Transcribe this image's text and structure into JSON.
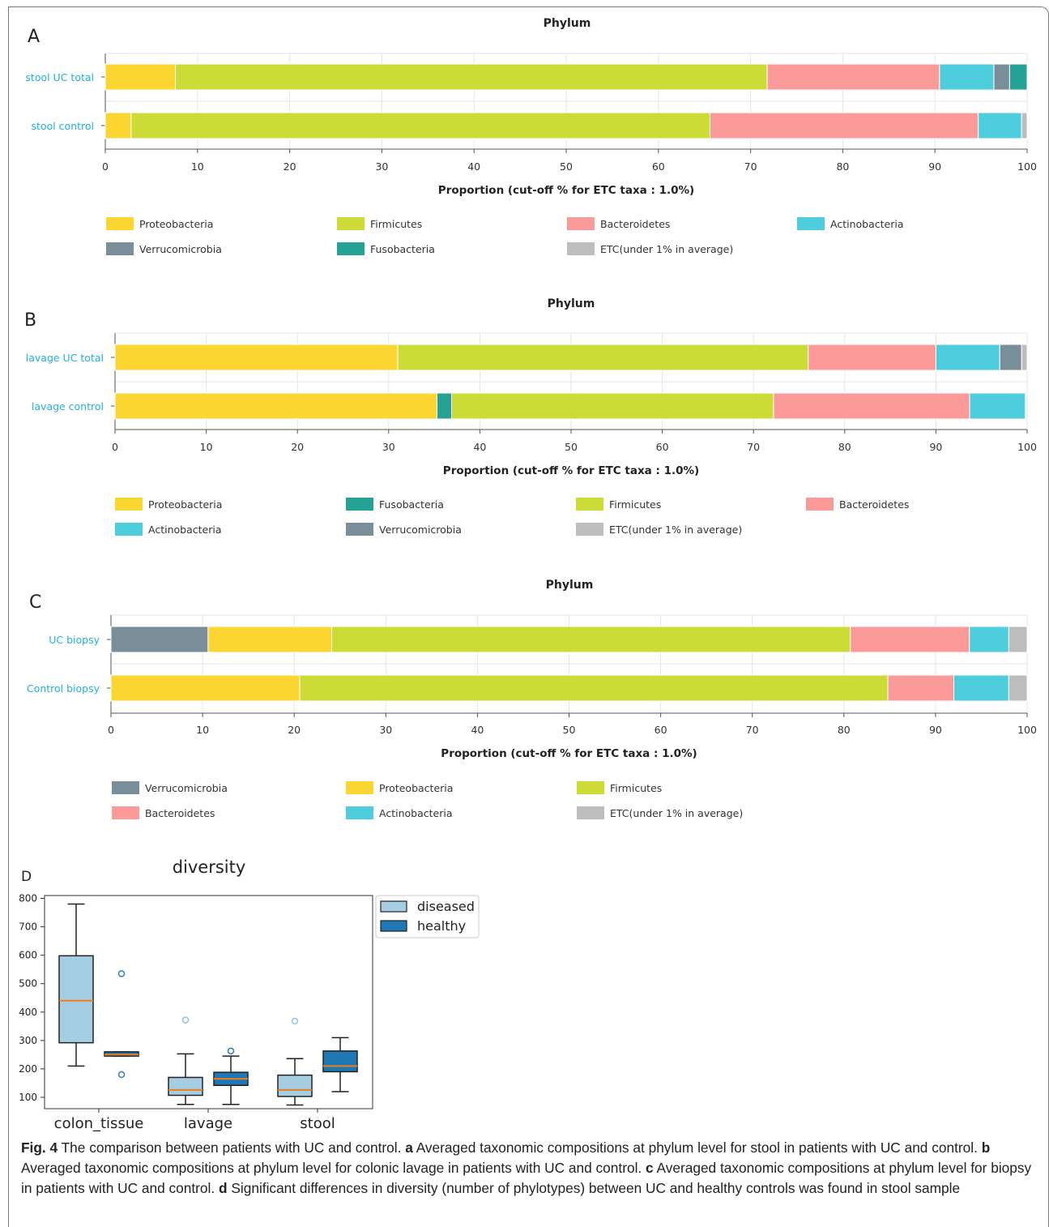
{
  "colors": {
    "Proteobacteria": "#fcd630",
    "Firmicutes": "#cddb37",
    "Bacteroidetes": "#fc9a9a",
    "Actinobacteria": "#4ecedc",
    "Verrucomicrobia": "#798e98",
    "Fusobacteria": "#25a195",
    "ETC(under 1% in average)": "#bdbdbd"
  },
  "chart_data": [
    {
      "type": "bar",
      "orientation": "horizontal",
      "stacked": true,
      "panel": "A",
      "title": "Phylum",
      "xlabel": "Proportion (cut-off % for ETC taxa : 1.0%)",
      "xlim": [
        0,
        100
      ],
      "xticks": [
        "0",
        "10",
        "20",
        "30",
        "40",
        "50",
        "60",
        "70",
        "80",
        "90",
        "100"
      ],
      "categories": [
        "stool UC total",
        "stool control"
      ],
      "legend": [
        "Proteobacteria",
        "Firmicutes",
        "Bacteroidetes",
        "Actinobacteria",
        "Verrucomicrobia",
        "Fusobacteria",
        "ETC(under 1% in average)"
      ],
      "legend_position": "bottom",
      "bars": [
        {
          "category": "stool UC total",
          "segments": [
            {
              "name": "Proteobacteria",
              "value": 7.6
            },
            {
              "name": "Firmicutes",
              "value": 64.2
            },
            {
              "name": "Bacteroidetes",
              "value": 18.7
            },
            {
              "name": "Actinobacteria",
              "value": 5.9
            },
            {
              "name": "Verrucomicrobia",
              "value": 1.7
            },
            {
              "name": "Fusobacteria",
              "value": 1.9
            }
          ]
        },
        {
          "category": "stool control",
          "segments": [
            {
              "name": "Proteobacteria",
              "value": 2.8
            },
            {
              "name": "Firmicutes",
              "value": 62.8
            },
            {
              "name": "Bacteroidetes",
              "value": 29.1
            },
            {
              "name": "Actinobacteria",
              "value": 4.7
            },
            {
              "name": "ETC(under 1% in average)",
              "value": 0.6
            }
          ]
        }
      ]
    },
    {
      "type": "bar",
      "orientation": "horizontal",
      "stacked": true,
      "panel": "B",
      "title": "Phylum",
      "xlabel": "Proportion (cut-off % for ETC taxa : 1.0%)",
      "xlim": [
        0,
        100
      ],
      "xticks": [
        "0",
        "10",
        "20",
        "30",
        "40",
        "50",
        "60",
        "70",
        "80",
        "90",
        "100"
      ],
      "categories": [
        "lavage UC total",
        "lavage control"
      ],
      "legend": [
        "Proteobacteria",
        "Fusobacteria",
        "Firmicutes",
        "Bacteroidetes",
        "Actinobacteria",
        "Verrucomicrobia",
        "ETC(under 1% in average)"
      ],
      "legend_position": "bottom",
      "bars": [
        {
          "category": "lavage UC total",
          "segments": [
            {
              "name": "Proteobacteria",
              "value": 31.0
            },
            {
              "name": "Firmicutes",
              "value": 45.0
            },
            {
              "name": "Bacteroidetes",
              "value": 14.0
            },
            {
              "name": "Actinobacteria",
              "value": 7.0
            },
            {
              "name": "Verrucomicrobia",
              "value": 2.4
            },
            {
              "name": "ETC(under 1% in average)",
              "value": 0.6
            }
          ]
        },
        {
          "category": "lavage control",
          "segments": [
            {
              "name": "Proteobacteria",
              "value": 35.3
            },
            {
              "name": "Fusobacteria",
              "value": 1.6
            },
            {
              "name": "Firmicutes",
              "value": 35.3
            },
            {
              "name": "Bacteroidetes",
              "value": 21.5
            },
            {
              "name": "Actinobacteria",
              "value": 6.1
            }
          ]
        }
      ]
    },
    {
      "type": "bar",
      "orientation": "horizontal",
      "stacked": true,
      "panel": "C",
      "title": "Phylum",
      "xlabel": "Proportion (cut-off % for ETC taxa : 1.0%)",
      "xlim": [
        0,
        100
      ],
      "xticks": [
        "0",
        "10",
        "20",
        "30",
        "40",
        "50",
        "60",
        "70",
        "80",
        "90",
        "100"
      ],
      "categories": [
        "UC biopsy",
        "Control biopsy"
      ],
      "legend": [
        "Verrucomicrobia",
        "Proteobacteria",
        "Firmicutes",
        "Bacteroidetes",
        "Actinobacteria",
        "ETC(under 1% in average)"
      ],
      "legend_position": "bottom",
      "bars": [
        {
          "category": "UC biopsy",
          "segments": [
            {
              "name": "Verrucomicrobia",
              "value": 10.6
            },
            {
              "name": "Proteobacteria",
              "value": 13.5
            },
            {
              "name": "Firmicutes",
              "value": 56.6
            },
            {
              "name": "Bacteroidetes",
              "value": 13.0
            },
            {
              "name": "Actinobacteria",
              "value": 4.3
            },
            {
              "name": "ETC(under 1% in average)",
              "value": 2.0
            }
          ]
        },
        {
          "category": "Control biopsy",
          "segments": [
            {
              "name": "Proteobacteria",
              "value": 20.6
            },
            {
              "name": "Firmicutes",
              "value": 64.2
            },
            {
              "name": "Bacteroidetes",
              "value": 7.2
            },
            {
              "name": "Actinobacteria",
              "value": 6.0
            },
            {
              "name": "ETC(under 1% in average)",
              "value": 2.0
            }
          ]
        }
      ]
    },
    {
      "type": "box",
      "panel": "D",
      "title": "diversity",
      "categories": [
        "colon_tissue",
        "lavage",
        "stool"
      ],
      "ylim": [
        60,
        810
      ],
      "yticks": [
        "100",
        "200",
        "300",
        "400",
        "500",
        "600",
        "700",
        "800"
      ],
      "legend_position": "top-right (outside)",
      "series": [
        {
          "name": "diseased",
          "color": "#a6cee3",
          "boxes": [
            {
              "category": "colon_tissue",
              "whislo": 210,
              "q1": 292,
              "med": 440,
              "q3": 598,
              "whishi": 780,
              "fliers": []
            },
            {
              "category": "lavage",
              "whislo": 75,
              "q1": 107,
              "med": 126,
              "q3": 170,
              "whishi": 253,
              "fliers": [
                372
              ]
            },
            {
              "category": "stool",
              "whislo": 73,
              "q1": 103,
              "med": 126,
              "q3": 178,
              "whishi": 236,
              "fliers": [
                368
              ]
            }
          ]
        },
        {
          "name": "healthy",
          "color": "#1f78b4",
          "boxes": [
            {
              "category": "colon_tissue",
              "whislo": 245,
              "q1": 245,
              "med": 250,
              "q3": 260,
              "whishi": 260,
              "fliers": [
                535,
                180
              ]
            },
            {
              "category": "lavage",
              "whislo": 75,
              "q1": 142,
              "med": 165,
              "q3": 188,
              "whishi": 245,
              "fliers": [
                263
              ]
            },
            {
              "category": "stool",
              "whislo": 120,
              "q1": 190,
              "med": 210,
              "q3": 263,
              "whishi": 310,
              "fliers": []
            }
          ]
        }
      ]
    }
  ],
  "panel_labels": [
    "A",
    "B",
    "C",
    "D"
  ],
  "caption": {
    "fig": "Fig. 4",
    "intro": "  The comparison between patients with UC and control.",
    "a_label": "a",
    "a_text": " Averaged taxonomic compositions at phylum level for stool in patients with UC and control.",
    "b_label": "b",
    "b_text": " Averaged taxonomic compositions at phylum level for colonic lavage in patients with UC and control.",
    "c_label": "c",
    "c_text": " Averaged taxonomic compositions at phylum level for biopsy in patients with UC and control.",
    "d_label": "d",
    "d_text": " Significant differences in diversity (number of phylotypes) between UC and healthy controls was found in stool sample"
  }
}
